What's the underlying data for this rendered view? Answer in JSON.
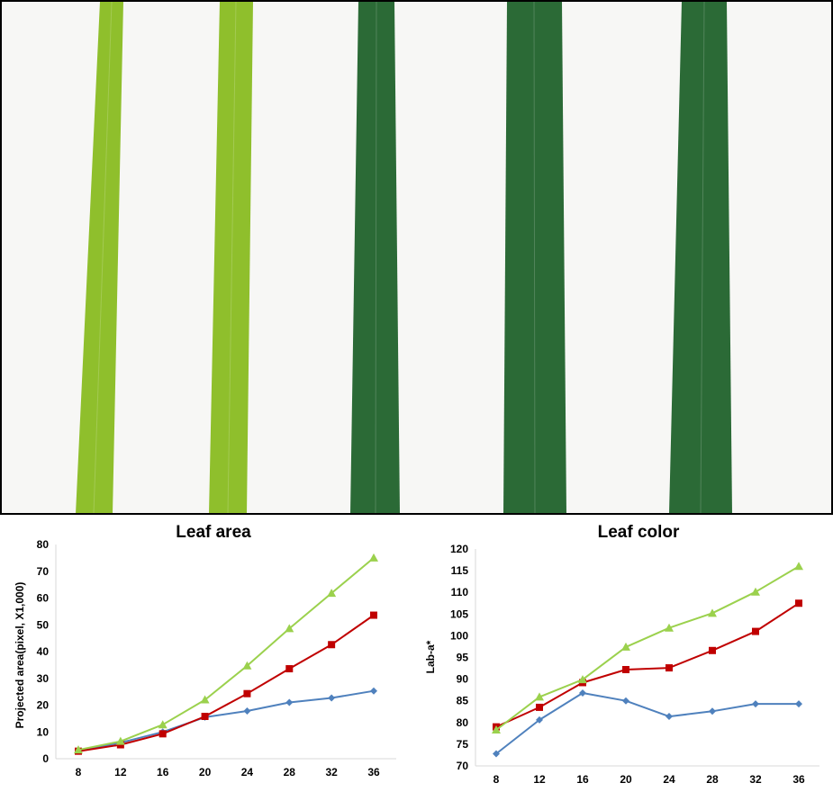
{
  "colors": {
    "leaf_light": "#8fbf2c",
    "leaf_dark": "#2b6a36",
    "background": "#f7f7f5",
    "frame": "#000000"
  },
  "chart_data": [
    {
      "type": "line",
      "title": "Leaf area",
      "xlabel": "",
      "ylabel": "Projected  area(pixel, X1,000)",
      "x": [
        8,
        12,
        16,
        20,
        24,
        28,
        32,
        36
      ],
      "xlim": [
        8,
        36
      ],
      "ylim": [
        0,
        80
      ],
      "yticks": [
        0,
        10,
        20,
        30,
        40,
        50,
        60,
        70,
        80
      ],
      "grid": false,
      "legend": "none",
      "series": [
        {
          "color": "#4f81bd",
          "marker": "diamond",
          "values": [
            3,
            6,
            10,
            15.5,
            17.8,
            21,
            22.7,
            25.3
          ]
        },
        {
          "color": "#c00000",
          "marker": "square",
          "values": [
            2.8,
            5.2,
            9.3,
            15.8,
            24.3,
            33.6,
            42.6,
            53.6
          ]
        },
        {
          "color": "#9bd14d",
          "marker": "triangle",
          "values": [
            3.3,
            6.5,
            12.7,
            22,
            34.7,
            48.6,
            61.8,
            75
          ]
        }
      ]
    },
    {
      "type": "line",
      "title": "Leaf color",
      "xlabel": "",
      "ylabel": "Lab-a*",
      "x": [
        8,
        12,
        16,
        20,
        24,
        28,
        32,
        36
      ],
      "xlim": [
        8,
        36
      ],
      "ylim": [
        70,
        120
      ],
      "yticks": [
        70,
        75,
        80,
        85,
        90,
        95,
        100,
        105,
        110,
        115,
        120
      ],
      "grid": false,
      "legend": "none",
      "series": [
        {
          "color": "#4f81bd",
          "marker": "diamond",
          "values": [
            72.8,
            80.6,
            86.8,
            85,
            81.4,
            82.6,
            84.3,
            84.3
          ]
        },
        {
          "color": "#c00000",
          "marker": "square",
          "values": [
            79,
            83.5,
            89.2,
            92.2,
            92.6,
            96.6,
            101,
            107.5
          ]
        },
        {
          "color": "#9bd14d",
          "marker": "triangle",
          "values": [
            78.3,
            85.9,
            89.9,
            97.4,
            101.8,
            105.2,
            110.1,
            116
          ]
        }
      ]
    }
  ]
}
